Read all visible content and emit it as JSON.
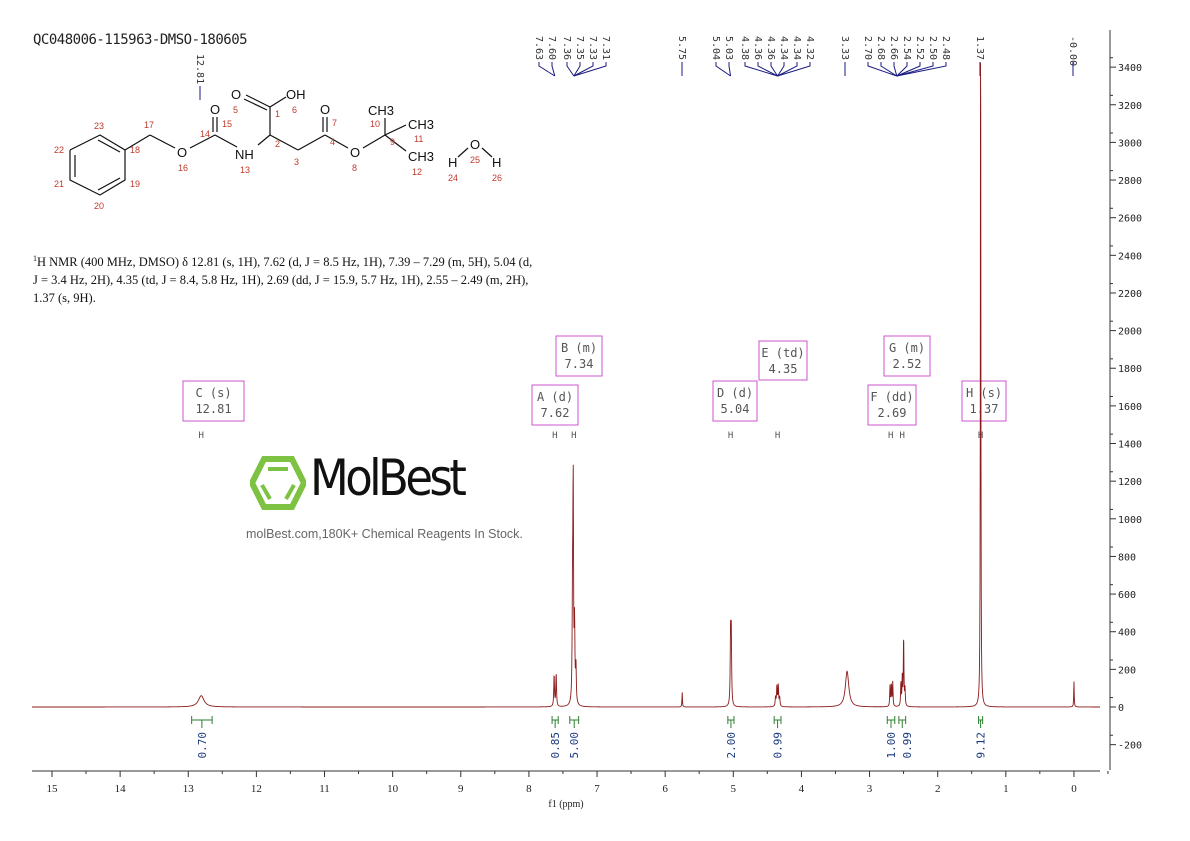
{
  "title": "QC048006-115963-DMSO-180605",
  "nmr_text": {
    "sup": "1",
    "body": "H NMR (400 MHz, DMSO) δ 12.81 (s, 1H), 7.62 (d, J = 8.5 Hz, 1H), 7.39 – 7.29 (m, 5H), 5.04 (d, J = 3.4 Hz, 2H), 4.35 (td, J = 8.4, 5.8 Hz, 1H), 2.69 (dd, J = 15.9, 5.7 Hz, 1H), 2.55 – 2.49 (m, 2H), 1.37 (s, 9H)."
  },
  "structure": {
    "atoms": [
      "O",
      "OH",
      "O",
      "O",
      "CH3",
      "CH3",
      "CH3",
      "O",
      "NH",
      "O",
      "H",
      "O",
      "H"
    ],
    "numbers": [
      "1",
      "2",
      "3",
      "4",
      "5",
      "6",
      "7",
      "8",
      "9",
      "10",
      "11",
      "12",
      "13",
      "14",
      "15",
      "16",
      "17",
      "18",
      "19",
      "20",
      "21",
      "22",
      "23",
      "24",
      "25",
      "26"
    ]
  },
  "watermark": {
    "brand": "MolBest",
    "sub": "molBest.com,180K+ Chemical Reagents In Stock.",
    "color": "#7dc242"
  },
  "colors": {
    "spectrum": "#8b1a1a",
    "peak_label": "#1a1a80",
    "integral": "#2e7d32",
    "multiplet_box": "#cc55cc"
  },
  "chart_data": {
    "type": "line",
    "xlabel": "f1 (ppm)",
    "xlim": [
      15.3,
      -0.4
    ],
    "x_reversed": true,
    "ylim": [
      -350,
      3600
    ],
    "x_ticks": [
      "15",
      "14",
      "13",
      "12",
      "11",
      "10",
      "9",
      "8",
      "7",
      "6",
      "5",
      "4",
      "3",
      "2",
      "1",
      "0"
    ],
    "y_ticks": [
      "3400",
      "3200",
      "3000",
      "2800",
      "2600",
      "2400",
      "2200",
      "2000",
      "1800",
      "1600",
      "1400",
      "1200",
      "1000",
      "800",
      "600",
      "400",
      "200",
      "0",
      "-200"
    ],
    "peaks": [
      {
        "ppm": 12.81,
        "intensity": 60,
        "width": 0.05
      },
      {
        "ppm": 7.63,
        "intensity": 170,
        "width": 0.006
      },
      {
        "ppm": 7.6,
        "intensity": 175,
        "width": 0.006
      },
      {
        "ppm": 7.36,
        "intensity": 500,
        "width": 0.006
      },
      {
        "ppm": 7.35,
        "intensity": 1150,
        "width": 0.006
      },
      {
        "ppm": 7.33,
        "intensity": 400,
        "width": 0.006
      },
      {
        "ppm": 7.31,
        "intensity": 200,
        "width": 0.006
      },
      {
        "ppm": 5.75,
        "intensity": 80,
        "width": 0.004
      },
      {
        "ppm": 5.04,
        "intensity": 380,
        "width": 0.006
      },
      {
        "ppm": 5.03,
        "intensity": 360,
        "width": 0.006
      },
      {
        "ppm": 4.38,
        "intensity": 50,
        "width": 0.006
      },
      {
        "ppm": 4.36,
        "intensity": 110,
        "width": 0.006
      },
      {
        "ppm": 4.34,
        "intensity": 110,
        "width": 0.006
      },
      {
        "ppm": 4.32,
        "intensity": 50,
        "width": 0.006
      },
      {
        "ppm": 3.33,
        "intensity": 190,
        "width": 0.03
      },
      {
        "ppm": 2.7,
        "intensity": 110,
        "width": 0.005
      },
      {
        "ppm": 2.68,
        "intensity": 120,
        "width": 0.005
      },
      {
        "ppm": 2.66,
        "intensity": 130,
        "width": 0.005
      },
      {
        "ppm": 2.54,
        "intensity": 130,
        "width": 0.005
      },
      {
        "ppm": 2.52,
        "intensity": 150,
        "width": 0.005
      },
      {
        "ppm": 2.5,
        "intensity": 380,
        "width": 0.005
      },
      {
        "ppm": 2.48,
        "intensity": 90,
        "width": 0.005
      },
      {
        "ppm": 1.37,
        "intensity": 4000,
        "width": 0.004
      },
      {
        "ppm": 0.0,
        "intensity": 140,
        "width": 0.004
      }
    ],
    "peak_labels": [
      {
        "group": [
          "7.63",
          "7.60"
        ],
        "ppm": 7.62
      },
      {
        "group": [
          "7.36",
          "7.35",
          "7.33",
          "7.31"
        ],
        "ppm": 7.34
      },
      {
        "group": [
          "5.75"
        ],
        "ppm": 5.75
      },
      {
        "group": [
          "5.04",
          "5.03"
        ],
        "ppm": 5.04
      },
      {
        "group": [
          "4.38",
          "4.36",
          "4.36",
          "4.34",
          "4.34",
          "4.32"
        ],
        "ppm": 4.35
      },
      {
        "group": [
          "3.33"
        ],
        "ppm": 3.33
      },
      {
        "group": [
          "2.70",
          "2.68",
          "2.66",
          "2.54",
          "2.52",
          "2.50",
          "2.48"
        ],
        "ppm": 2.6
      },
      {
        "group": [
          "1.37"
        ],
        "ppm": 1.37
      },
      {
        "group": [
          "-0.00"
        ],
        "ppm": 0.0
      },
      {
        "group": [
          "12.81"
        ],
        "ppm": 12.81
      }
    ],
    "integrals": [
      {
        "from": 12.95,
        "to": 12.65,
        "value": "0.70"
      },
      {
        "from": 7.66,
        "to": 7.57,
        "value": "0.85"
      },
      {
        "from": 7.4,
        "to": 7.27,
        "value": "5.00"
      },
      {
        "from": 5.08,
        "to": 4.99,
        "value": "2.00"
      },
      {
        "from": 4.4,
        "to": 4.3,
        "value": "0.99"
      },
      {
        "from": 2.74,
        "to": 2.63,
        "value": "1.00"
      },
      {
        "from": 2.57,
        "to": 2.47,
        "value": "0.99"
      },
      {
        "from": 1.4,
        "to": 1.34,
        "value": "9.12"
      }
    ],
    "multiplets": [
      {
        "label": "C (s)",
        "shift": "12.81",
        "ppm": 12.81
      },
      {
        "label": "A (d)",
        "shift": "7.62",
        "ppm": 7.62
      },
      {
        "label": "B (m)",
        "shift": "7.34",
        "ppm": 7.34
      },
      {
        "label": "D (d)",
        "shift": "5.04",
        "ppm": 5.04
      },
      {
        "label": "E (td)",
        "shift": "4.35",
        "ppm": 4.35
      },
      {
        "label": "F (dd)",
        "shift": "2.69",
        "ppm": 2.69
      },
      {
        "label": "G (m)",
        "shift": "2.52",
        "ppm": 2.52
      },
      {
        "label": "H (s)",
        "shift": "1.37",
        "ppm": 1.37
      }
    ]
  }
}
